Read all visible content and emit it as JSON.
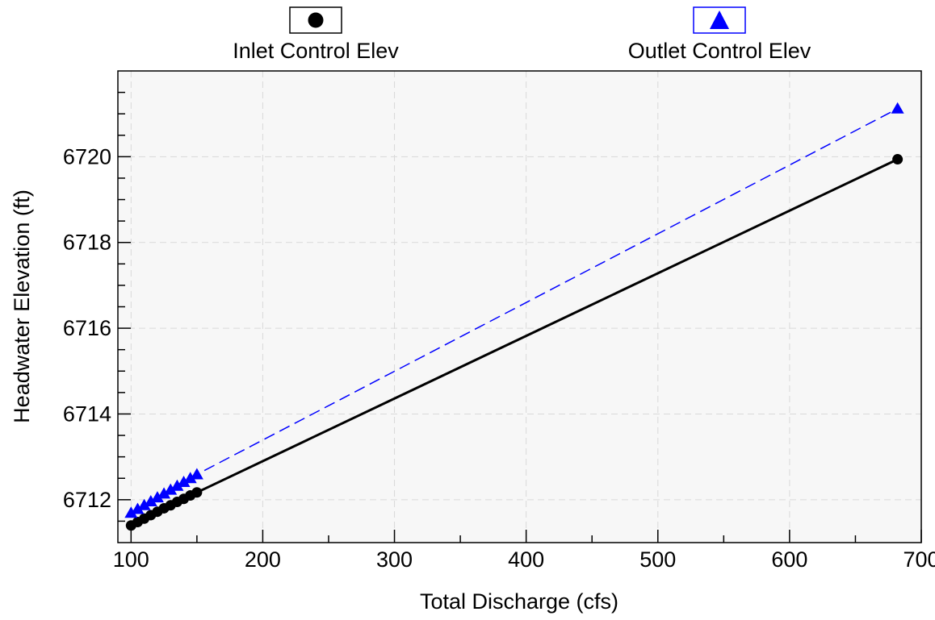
{
  "chart_data": {
    "type": "line",
    "xlabel": "Total Discharge (cfs)",
    "ylabel": "Headwater Elevation (ft)",
    "xlim": [
      90,
      700
    ],
    "ylim": [
      6711,
      6722
    ],
    "x_ticks": [
      100,
      200,
      300,
      400,
      500,
      600,
      700
    ],
    "y_ticks": [
      6712,
      6714,
      6716,
      6718,
      6720
    ],
    "grid": true,
    "legend": "top",
    "series": [
      {
        "name": "Inlet Control Elev",
        "color": "#000000",
        "marker": "circle",
        "line": "solid",
        "x": [
          100,
          105,
          110,
          115,
          120,
          125,
          130,
          135,
          140,
          145,
          150,
          682
        ],
        "y": [
          6711.4,
          6711.48,
          6711.56,
          6711.64,
          6711.72,
          6711.8,
          6711.87,
          6711.95,
          6712.02,
          6712.1,
          6712.17,
          6719.94
        ]
      },
      {
        "name": "Outlet Control Elev",
        "color": "#0000ff",
        "marker": "triangle",
        "line": "dashed",
        "x": [
          100,
          105,
          110,
          115,
          120,
          125,
          130,
          135,
          140,
          145,
          150,
          682
        ],
        "y": [
          6711.69,
          6711.78,
          6711.87,
          6711.96,
          6712.05,
          6712.14,
          6712.23,
          6712.32,
          6712.41,
          6712.5,
          6712.59,
          6721.12
        ]
      }
    ]
  }
}
